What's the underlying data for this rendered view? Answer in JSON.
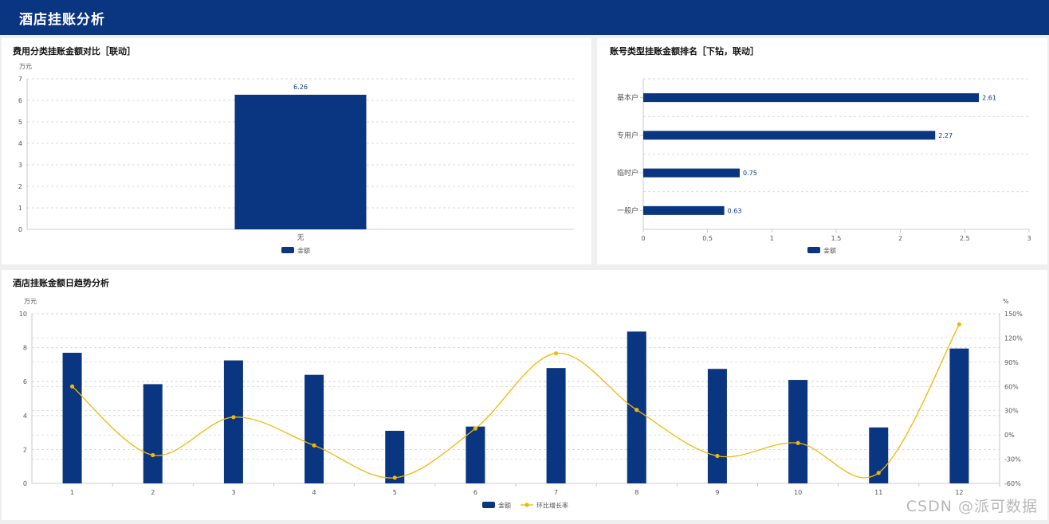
{
  "header": {
    "title": "酒店挂账分析"
  },
  "watermark": "CSDN @派可数据",
  "colors": {
    "bar": "#0a3580",
    "line": "#f2b705",
    "header": "#0a3580"
  },
  "chart_data": [
    {
      "type": "bar",
      "title": "费用分类挂账金额对比［联动］",
      "ylabel": "万元",
      "ylim": [
        0,
        7
      ],
      "yticks": [
        0,
        1,
        2,
        3,
        4,
        5,
        6,
        7
      ],
      "grid": true,
      "categories": [
        "无"
      ],
      "series": [
        {
          "name": "金额",
          "values": [
            6.26
          ]
        }
      ],
      "data_labels": [
        "6.26"
      ],
      "legend": "bottom-center"
    },
    {
      "type": "bar",
      "orientation": "horizontal",
      "title": "账号类型挂账金额排名［下钻，联动］",
      "xlim": [
        0,
        3
      ],
      "xticks": [
        0,
        0.5,
        1,
        1.5,
        2,
        2.5,
        3
      ],
      "xtick_labels": [
        "0",
        "0.5",
        "1",
        "1.5",
        "2",
        "2.5",
        "3"
      ],
      "grid": true,
      "categories": [
        "基本户",
        "专用户",
        "临时户",
        "一般户"
      ],
      "series": [
        {
          "name": "金额",
          "values": [
            2.61,
            2.27,
            0.75,
            0.63
          ]
        }
      ],
      "data_labels": [
        "2.61",
        "2.27",
        "0.75",
        "0.63"
      ],
      "legend": "bottom-center"
    },
    {
      "type": "bar+line",
      "title": "酒店挂账金额日趋势分析",
      "ylabel": "万元",
      "y2label": "%",
      "ylim": [
        0,
        10
      ],
      "yticks": [
        0,
        2,
        4,
        6,
        8,
        10
      ],
      "y2lim": [
        -60,
        150
      ],
      "y2ticks": [
        -60,
        -30,
        0,
        30,
        60,
        90,
        120,
        150
      ],
      "y2tick_labels": [
        "-60%",
        "-30%",
        "0%",
        "30%",
        "60%",
        "90%",
        "120%",
        "150%"
      ],
      "grid": true,
      "categories": [
        "1",
        "2",
        "3",
        "4",
        "5",
        "6",
        "7",
        "8",
        "9",
        "10",
        "11",
        "12"
      ],
      "series": [
        {
          "name": "金额",
          "type": "bar",
          "axis": "left",
          "values": [
            7.7,
            5.85,
            7.25,
            6.4,
            3.1,
            3.35,
            6.8,
            8.95,
            6.75,
            6.1,
            3.3,
            7.95
          ]
        },
        {
          "name": "环比增长率",
          "type": "line",
          "axis": "right",
          "values": [
            60,
            -25,
            22,
            -13,
            -53,
            8,
            101,
            31,
            -26,
            -10,
            -47,
            137
          ]
        }
      ],
      "legend": "bottom-center"
    }
  ]
}
